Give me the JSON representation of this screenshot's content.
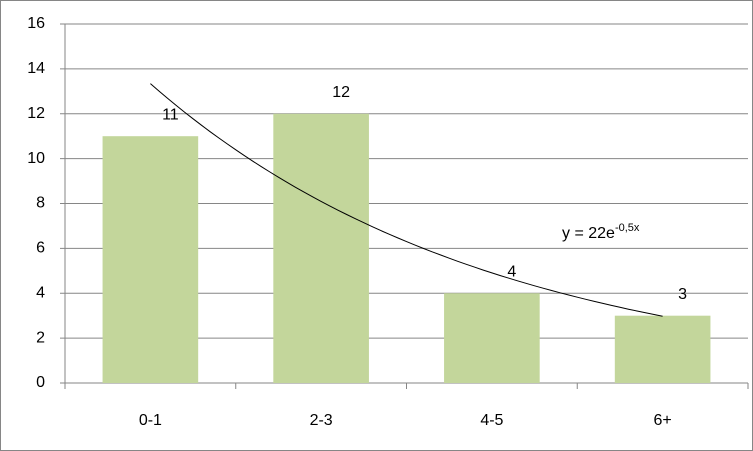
{
  "chart_data": {
    "type": "bar",
    "categories": [
      "0-1",
      "2-3",
      "4-5",
      "6+"
    ],
    "values": [
      11,
      12,
      4,
      3
    ],
    "color": "#c3d69b",
    "ylim": [
      0,
      16
    ],
    "yticks": [
      0,
      2,
      4,
      6,
      8,
      10,
      12,
      14,
      16
    ],
    "grid": true,
    "trendline": {
      "a": 22,
      "b": -0.5,
      "label": "y = 22e",
      "exponent_label": "-0,5x",
      "color": "#000000"
    }
  }
}
